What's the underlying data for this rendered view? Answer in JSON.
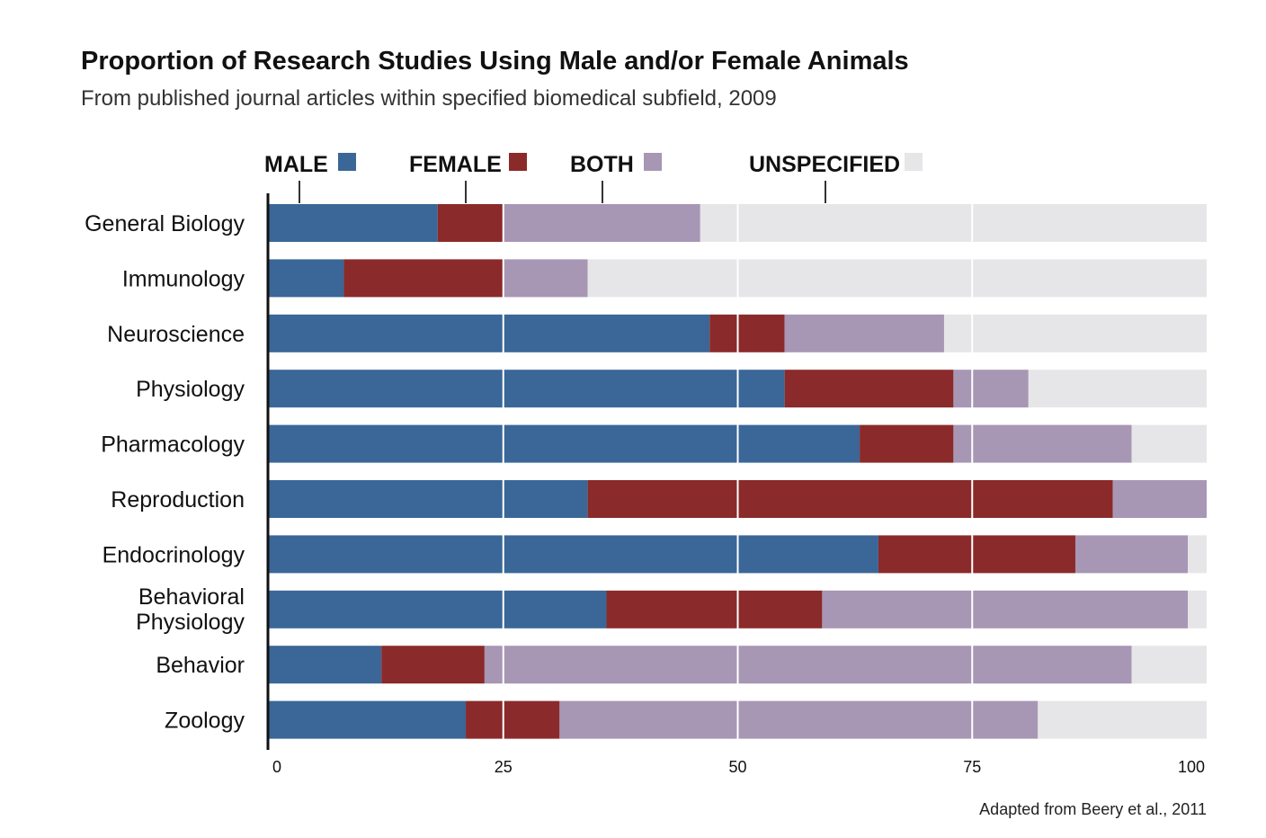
{
  "chart_data": {
    "type": "bar",
    "orientation": "horizontal",
    "stacked": true,
    "title": "Proportion of Research Studies Using Male and/or Female Animals",
    "subtitle": "From published journal articles within specified biomedical subfield, 2009",
    "source": "Adapted from Beery et al., 2011",
    "categories": [
      "General Biology",
      "Immunology",
      "Neuroscience",
      "Physiology",
      "Pharmacology",
      "Reproduction",
      "Endocrinology",
      "Behavioral Physiology",
      "Behavior",
      "Zoology"
    ],
    "category_lines": [
      [
        "General Biology"
      ],
      [
        "Immunology"
      ],
      [
        "Neuroscience"
      ],
      [
        "Physiology"
      ],
      [
        "Pharmacology"
      ],
      [
        "Reproduction"
      ],
      [
        "Endocrinology"
      ],
      [
        "Behavioral",
        "Physiology"
      ],
      [
        "Behavior"
      ],
      [
        "Zoology"
      ]
    ],
    "series": [
      {
        "name": "MALE",
        "color": "#3a6797",
        "values": [
          18,
          8,
          47,
          55,
          63,
          34,
          65,
          36,
          12,
          21
        ]
      },
      {
        "name": "FEMALE",
        "color": "#8b2a2a",
        "values": [
          7,
          17,
          8,
          18,
          10,
          56,
          21,
          23,
          11,
          10
        ]
      },
      {
        "name": "BOTH",
        "color": "#a896b5",
        "values": [
          21,
          9,
          17,
          8,
          19,
          10,
          12,
          39,
          69,
          51
        ]
      },
      {
        "name": "UNSPECIFIED",
        "color": "#e6e6e8",
        "values": [
          54,
          66,
          28,
          19,
          8,
          0,
          2,
          2,
          8,
          18
        ]
      }
    ],
    "xlim": [
      0,
      100
    ],
    "xticks": [
      "0",
      "25",
      "50",
      "75",
      "100"
    ],
    "gridlines": [
      25,
      50,
      75
    ],
    "legend_position": "top"
  }
}
